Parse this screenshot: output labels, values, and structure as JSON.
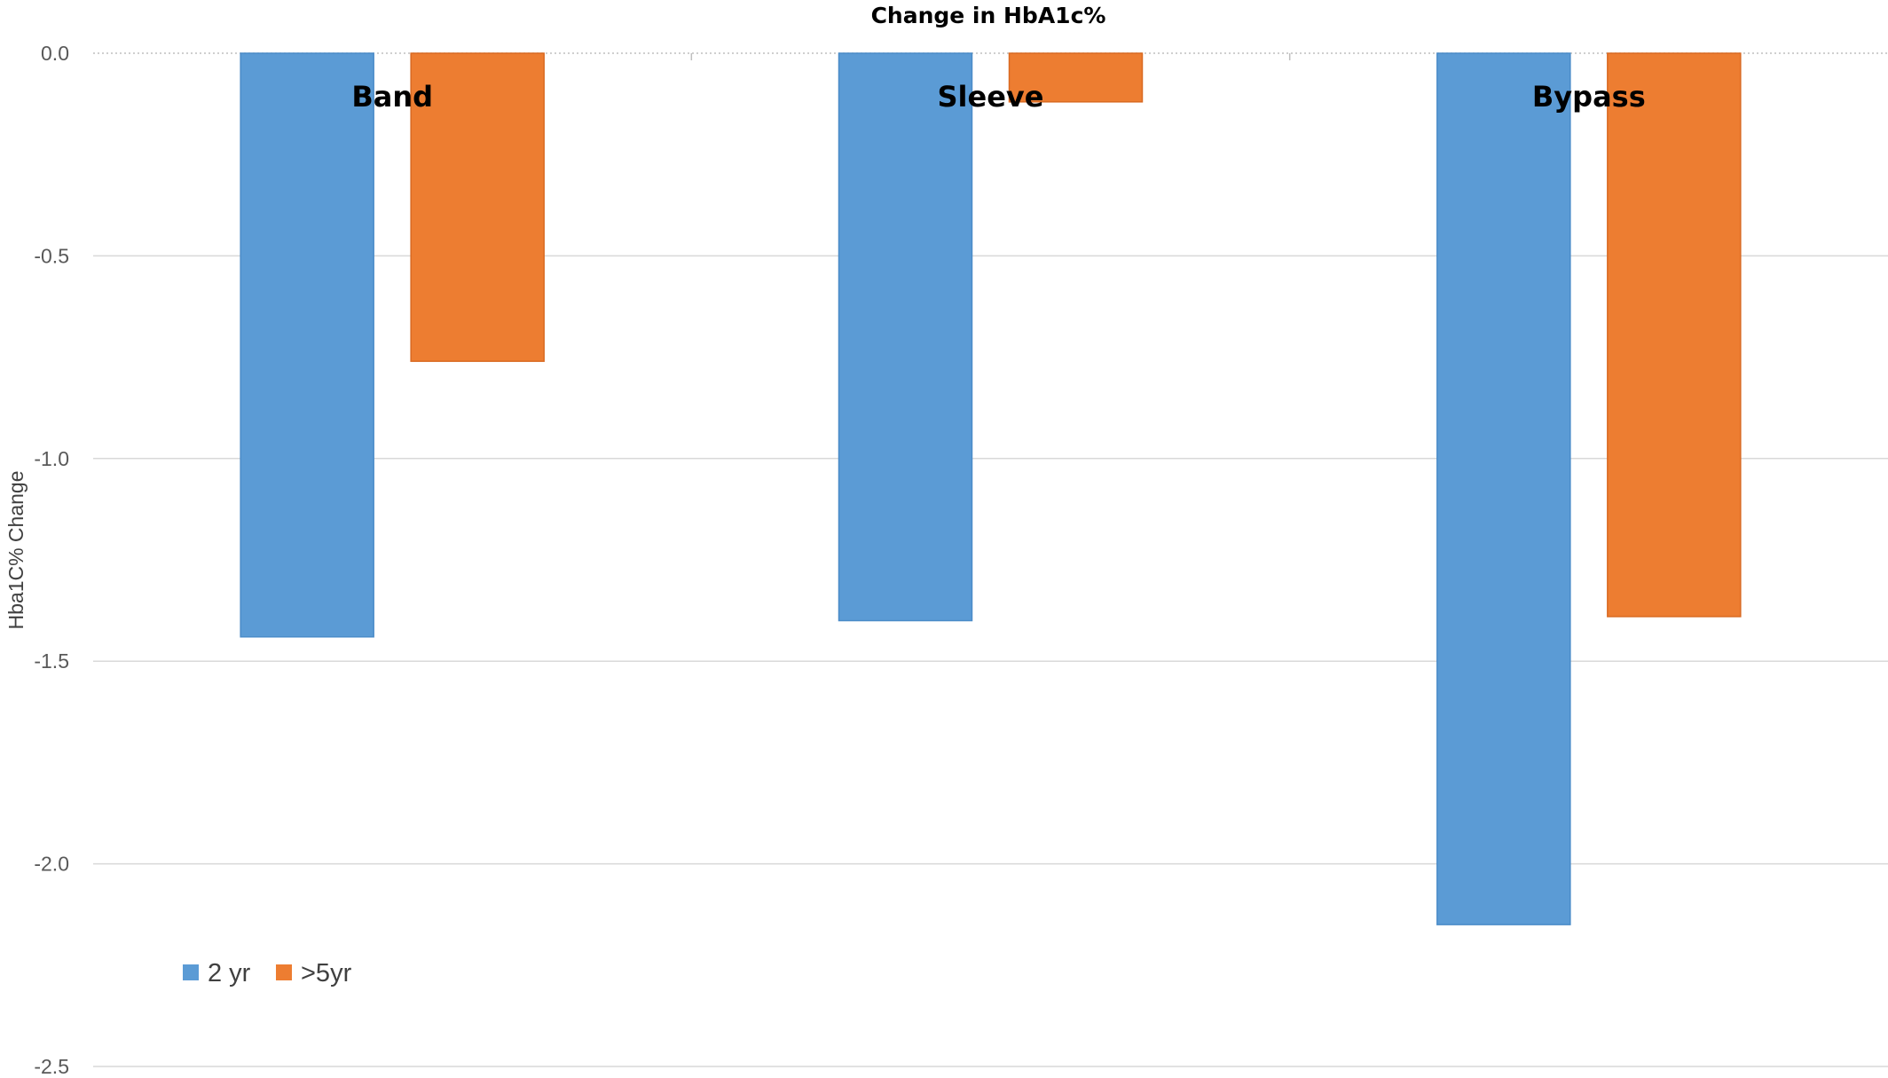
{
  "chart_data": {
    "type": "bar",
    "title": "Change in HbA1c%",
    "xlabel": "",
    "ylabel": "Hba1C% Change",
    "categories": [
      "Band",
      "Sleeve",
      "Bypass"
    ],
    "series": [
      {
        "name": "2 yr",
        "color": "#5b9bd5",
        "border": "#4a8bc8",
        "values": [
          -1.44,
          -1.4,
          -2.15
        ]
      },
      {
        "name": ">5yr",
        "color": "#ed7d31",
        "border": "#d96a22",
        "values": [
          -0.76,
          -0.12,
          -1.39
        ]
      }
    ],
    "ylim": [
      -2.5,
      0.0
    ],
    "yticks": [
      "0.0",
      "-0.5",
      "-1.0",
      "-1.5",
      "-2.0",
      "-2.5"
    ],
    "ytick_values": [
      0.0,
      -0.5,
      -1.0,
      -1.5,
      -2.0,
      -2.5
    ],
    "grid": true,
    "legend_position": "bottom-left"
  }
}
